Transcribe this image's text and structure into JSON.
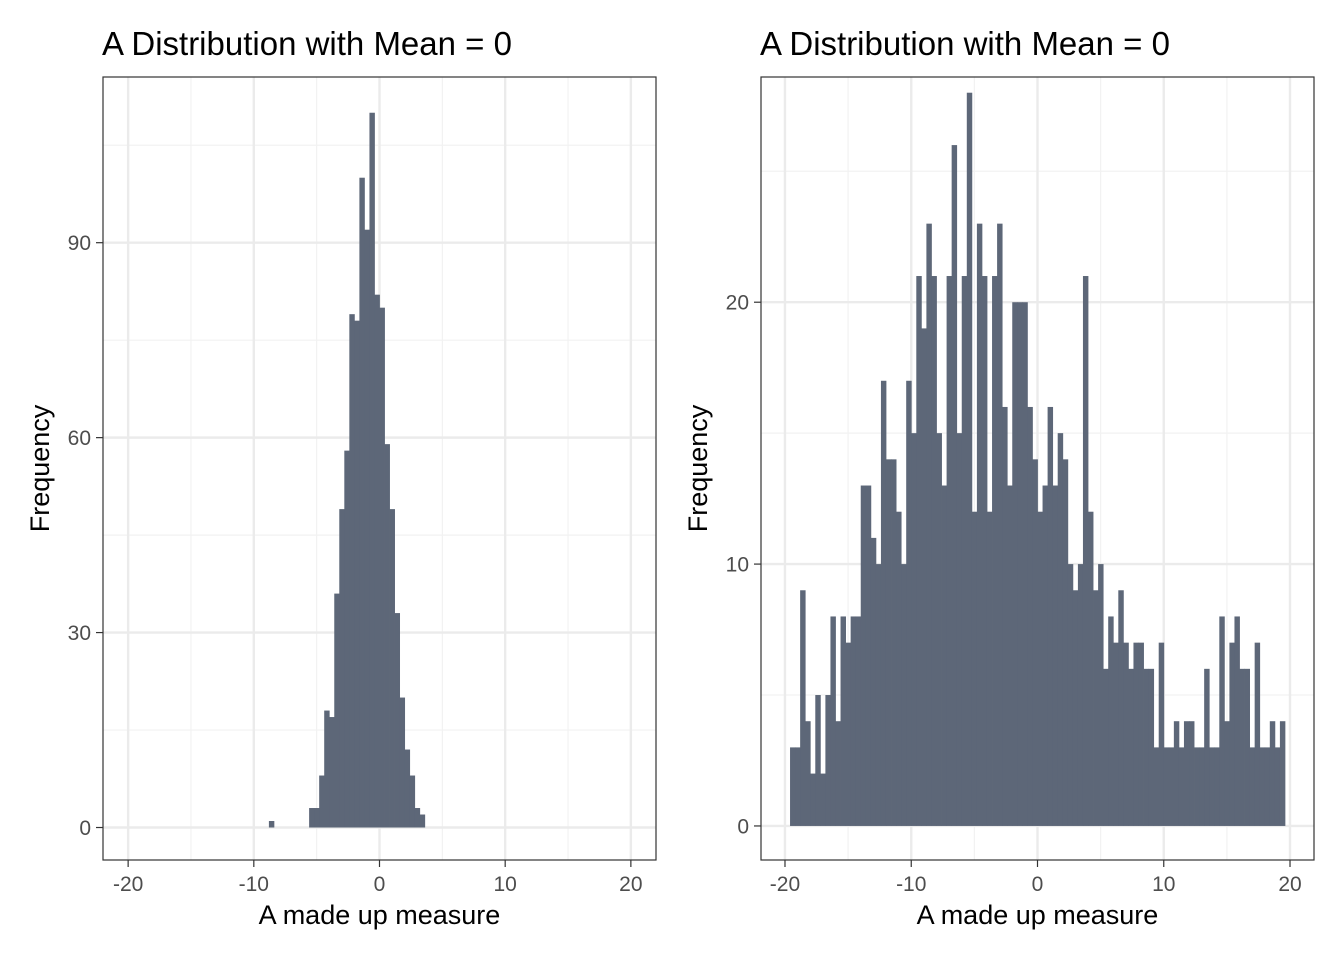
{
  "chart_data": [
    {
      "type": "bar",
      "title": "A Distribution with Mean = 0",
      "xlabel": "A made up measure",
      "ylabel": "Frequency",
      "xlim": [
        -22,
        22
      ],
      "ylim": [
        -5,
        115.5
      ],
      "x_ticks": [
        -20,
        -10,
        0,
        10,
        20
      ],
      "x_tick_labels": [
        "-20",
        "-10",
        "0",
        "10",
        "20"
      ],
      "y_ticks": [
        0,
        30,
        60,
        90
      ],
      "y_tick_labels": [
        "0",
        "30",
        "60",
        "90"
      ],
      "bin_width": 0.4,
      "grid": true,
      "bar_color": "#5d6778",
      "bins": [
        {
          "x": -8.6,
          "count": 1
        },
        {
          "x": -5.4,
          "count": 3
        },
        {
          "x": -5.0,
          "count": 3
        },
        {
          "x": -4.6,
          "count": 8
        },
        {
          "x": -4.2,
          "count": 18
        },
        {
          "x": -3.8,
          "count": 17
        },
        {
          "x": -3.4,
          "count": 36
        },
        {
          "x": -3.0,
          "count": 49
        },
        {
          "x": -2.6,
          "count": 58
        },
        {
          "x": -2.2,
          "count": 79
        },
        {
          "x": -1.8,
          "count": 78
        },
        {
          "x": -1.4,
          "count": 100
        },
        {
          "x": -1.0,
          "count": 92
        },
        {
          "x": -0.6,
          "count": 110
        },
        {
          "x": -0.2,
          "count": 82
        },
        {
          "x": 0.2,
          "count": 80
        },
        {
          "x": 0.6,
          "count": 59
        },
        {
          "x": 1.0,
          "count": 49
        },
        {
          "x": 1.4,
          "count": 33
        },
        {
          "x": 1.8,
          "count": 20
        },
        {
          "x": 2.2,
          "count": 12
        },
        {
          "x": 2.6,
          "count": 8
        },
        {
          "x": 3.0,
          "count": 3
        },
        {
          "x": 3.4,
          "count": 2
        }
      ]
    },
    {
      "type": "bar",
      "title": "A Distribution with Mean = 0",
      "xlabel": "A made up measure",
      "ylabel": "Frequency",
      "xlim": [
        -21.9,
        21.9
      ],
      "ylim": [
        -1.3,
        28.6
      ],
      "x_ticks": [
        -20,
        -10,
        0,
        10,
        20
      ],
      "x_tick_labels": [
        "-20",
        "-10",
        "0",
        "10",
        "20"
      ],
      "y_ticks": [
        0,
        10,
        20
      ],
      "y_tick_labels": [
        "0",
        "10",
        "20"
      ],
      "bin_width": 0.4,
      "grid": true,
      "bar_color": "#5d6778",
      "bins": [
        {
          "x": -19.4,
          "count": 3
        },
        {
          "x": -19.0,
          "count": 3
        },
        {
          "x": -18.6,
          "count": 9
        },
        {
          "x": -18.2,
          "count": 4
        },
        {
          "x": -17.8,
          "count": 2
        },
        {
          "x": -17.4,
          "count": 5
        },
        {
          "x": -17.0,
          "count": 2
        },
        {
          "x": -16.6,
          "count": 5
        },
        {
          "x": -16.2,
          "count": 8
        },
        {
          "x": -15.8,
          "count": 4
        },
        {
          "x": -15.4,
          "count": 8
        },
        {
          "x": -15.0,
          "count": 7
        },
        {
          "x": -14.6,
          "count": 8
        },
        {
          "x": -14.2,
          "count": 8
        },
        {
          "x": -13.8,
          "count": 13
        },
        {
          "x": -13.4,
          "count": 13
        },
        {
          "x": -13.0,
          "count": 11
        },
        {
          "x": -12.6,
          "count": 10
        },
        {
          "x": -12.2,
          "count": 17
        },
        {
          "x": -11.8,
          "count": 14
        },
        {
          "x": -11.4,
          "count": 14
        },
        {
          "x": -11.0,
          "count": 12
        },
        {
          "x": -10.6,
          "count": 10
        },
        {
          "x": -10.2,
          "count": 17
        },
        {
          "x": -9.8,
          "count": 15
        },
        {
          "x": -9.4,
          "count": 21
        },
        {
          "x": -9.0,
          "count": 19
        },
        {
          "x": -8.6,
          "count": 23
        },
        {
          "x": -8.2,
          "count": 21
        },
        {
          "x": -7.8,
          "count": 15
        },
        {
          "x": -7.4,
          "count": 13
        },
        {
          "x": -7.0,
          "count": 21
        },
        {
          "x": -6.6,
          "count": 26
        },
        {
          "x": -6.2,
          "count": 15
        },
        {
          "x": -5.8,
          "count": 21
        },
        {
          "x": -5.4,
          "count": 28
        },
        {
          "x": -5.0,
          "count": 12
        },
        {
          "x": -4.6,
          "count": 23
        },
        {
          "x": -4.2,
          "count": 21
        },
        {
          "x": -3.8,
          "count": 12
        },
        {
          "x": -3.4,
          "count": 21
        },
        {
          "x": -3.0,
          "count": 23
        },
        {
          "x": -2.6,
          "count": 16
        },
        {
          "x": -2.2,
          "count": 13
        },
        {
          "x": -1.8,
          "count": 20
        },
        {
          "x": -1.4,
          "count": 20
        },
        {
          "x": -1.0,
          "count": 20
        },
        {
          "x": -0.6,
          "count": 16
        },
        {
          "x": -0.2,
          "count": 14
        },
        {
          "x": 0.2,
          "count": 12
        },
        {
          "x": 0.6,
          "count": 13
        },
        {
          "x": 1.0,
          "count": 16
        },
        {
          "x": 1.4,
          "count": 13
        },
        {
          "x": 1.8,
          "count": 15
        },
        {
          "x": 2.2,
          "count": 14
        },
        {
          "x": 2.6,
          "count": 10
        },
        {
          "x": 3.0,
          "count": 9
        },
        {
          "x": 3.4,
          "count": 10
        },
        {
          "x": 3.8,
          "count": 21
        },
        {
          "x": 4.2,
          "count": 12
        },
        {
          "x": 4.6,
          "count": 9
        },
        {
          "x": 5.0,
          "count": 10
        },
        {
          "x": 5.4,
          "count": 6
        },
        {
          "x": 5.8,
          "count": 8
        },
        {
          "x": 6.2,
          "count": 7
        },
        {
          "x": 6.6,
          "count": 9
        },
        {
          "x": 7.0,
          "count": 7
        },
        {
          "x": 7.4,
          "count": 6
        },
        {
          "x": 7.8,
          "count": 7
        },
        {
          "x": 8.2,
          "count": 7
        },
        {
          "x": 8.6,
          "count": 6
        },
        {
          "x": 9.0,
          "count": 6
        },
        {
          "x": 9.4,
          "count": 3
        },
        {
          "x": 9.8,
          "count": 7
        },
        {
          "x": 10.2,
          "count": 3
        },
        {
          "x": 10.6,
          "count": 3
        },
        {
          "x": 11.0,
          "count": 4
        },
        {
          "x": 11.4,
          "count": 3
        },
        {
          "x": 11.8,
          "count": 4
        },
        {
          "x": 12.2,
          "count": 4
        },
        {
          "x": 12.6,
          "count": 3
        },
        {
          "x": 13.0,
          "count": 3
        },
        {
          "x": 13.4,
          "count": 6
        },
        {
          "x": 13.8,
          "count": 3
        },
        {
          "x": 14.2,
          "count": 3
        },
        {
          "x": 14.6,
          "count": 8
        },
        {
          "x": 15.0,
          "count": 4
        },
        {
          "x": 15.4,
          "count": 7
        },
        {
          "x": 15.8,
          "count": 8
        },
        {
          "x": 16.2,
          "count": 6
        },
        {
          "x": 16.6,
          "count": 6
        },
        {
          "x": 17.0,
          "count": 3
        },
        {
          "x": 17.4,
          "count": 7
        },
        {
          "x": 17.8,
          "count": 3
        },
        {
          "x": 18.2,
          "count": 3
        },
        {
          "x": 18.6,
          "count": 4
        },
        {
          "x": 19.0,
          "count": 3
        },
        {
          "x": 19.4,
          "count": 4
        }
      ]
    }
  ]
}
